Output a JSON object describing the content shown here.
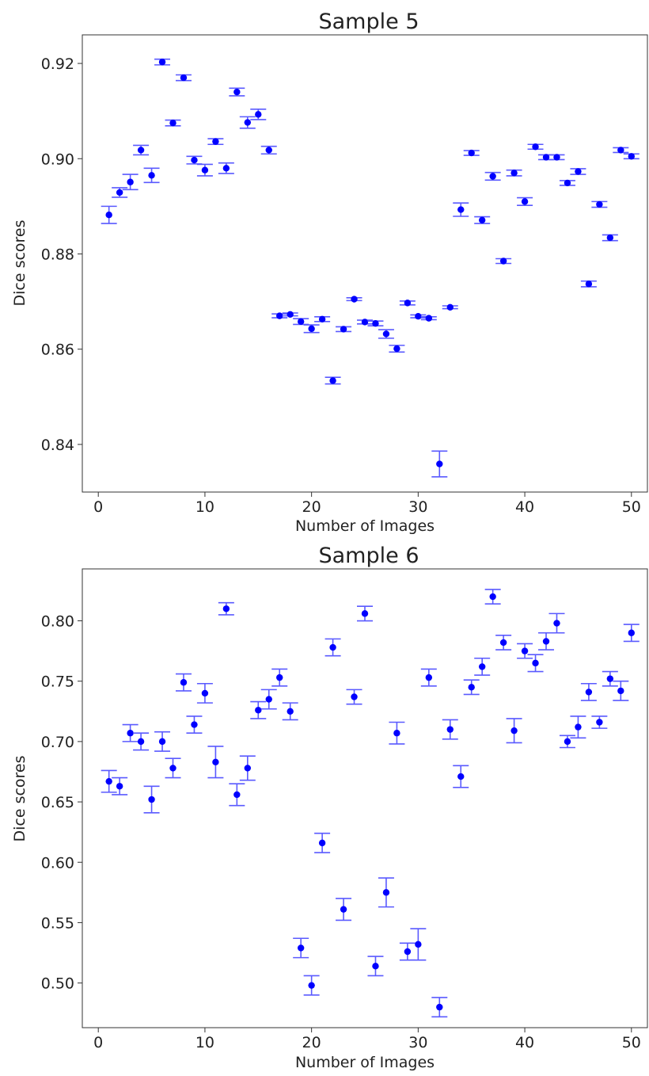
{
  "chart_data": [
    {
      "type": "scatter",
      "title": "Sample 5",
      "xlabel": "Number of Images",
      "ylabel": "Dice scores",
      "xlim": [
        -1.5,
        51.5
      ],
      "ylim": [
        0.83,
        0.926
      ],
      "xticks": [
        0,
        10,
        20,
        30,
        40,
        50
      ],
      "xtick_labels": [
        "0",
        "10",
        "20",
        "30",
        "40",
        "50"
      ],
      "yticks": [
        0.84,
        0.86,
        0.88,
        0.9,
        0.92
      ],
      "ytick_labels": [
        "0.84",
        "0.86",
        "0.88",
        "0.90",
        "0.92"
      ],
      "grid": false,
      "color": "#0000ff",
      "error_color": "#5a5aff",
      "series": [
        {
          "x": [
            1,
            2,
            3,
            4,
            5,
            6,
            7,
            8,
            9,
            10,
            11,
            12,
            13,
            14,
            15,
            16,
            17,
            18,
            19,
            20,
            21,
            22,
            23,
            24,
            25,
            26,
            27,
            28,
            29,
            30,
            31,
            32,
            33,
            34,
            35,
            36,
            37,
            38,
            39,
            40,
            41,
            42,
            43,
            44,
            45,
            46,
            47,
            48,
            49,
            50
          ],
          "y": [
            0.8882,
            0.8929,
            0.8951,
            0.9018,
            0.8965,
            0.9203,
            0.9075,
            0.917,
            0.8997,
            0.8976,
            0.9036,
            0.898,
            0.914,
            0.9076,
            0.9093,
            0.9018,
            0.867,
            0.8673,
            0.8658,
            0.8643,
            0.8663,
            0.8534,
            0.8642,
            0.8705,
            0.8657,
            0.8654,
            0.8632,
            0.8601,
            0.8697,
            0.8669,
            0.8665,
            0.8359,
            0.8688,
            0.8893,
            0.9012,
            0.8871,
            0.8963,
            0.8785,
            0.897,
            0.891,
            0.9025,
            0.9003,
            0.9003,
            0.8949,
            0.8973,
            0.8737,
            0.8904,
            0.8834,
            0.9018,
            0.9005
          ],
          "err": [
            0.0018,
            0.001,
            0.0016,
            0.001,
            0.0015,
            0.0006,
            0.0006,
            0.0006,
            0.0008,
            0.0012,
            0.0006,
            0.0011,
            0.0008,
            0.0012,
            0.0011,
            0.0008,
            0.0004,
            0.0003,
            0.0006,
            0.0008,
            0.0005,
            0.0007,
            0.0005,
            0.0003,
            0.0004,
            0.0005,
            0.0009,
            0.0007,
            0.0004,
            0.0003,
            0.0003,
            0.0027,
            0.0003,
            0.0014,
            0.0005,
            0.0007,
            0.0008,
            0.0005,
            0.0006,
            0.0008,
            0.0005,
            0.0005,
            0.0005,
            0.0005,
            0.0006,
            0.0006,
            0.0006,
            0.0006,
            0.0005,
            0.0005
          ]
        }
      ]
    },
    {
      "type": "scatter",
      "title": "Sample 6",
      "xlabel": "Number of Images",
      "ylabel": "Dice scores",
      "xlim": [
        -1.5,
        51.5
      ],
      "ylim": [
        0.463,
        0.843
      ],
      "xticks": [
        0,
        10,
        20,
        30,
        40,
        50
      ],
      "xtick_labels": [
        "0",
        "10",
        "20",
        "30",
        "40",
        "50"
      ],
      "yticks": [
        0.5,
        0.55,
        0.6,
        0.65,
        0.7,
        0.75,
        0.8
      ],
      "ytick_labels": [
        "0.50",
        "0.55",
        "0.60",
        "0.65",
        "0.70",
        "0.75",
        "0.80"
      ],
      "grid": false,
      "color": "#0000ff",
      "error_color": "#5a5aff",
      "series": [
        {
          "x": [
            1,
            2,
            3,
            4,
            5,
            6,
            7,
            8,
            9,
            10,
            11,
            12,
            13,
            14,
            15,
            16,
            17,
            18,
            19,
            20,
            21,
            22,
            23,
            24,
            25,
            26,
            27,
            28,
            29,
            30,
            31,
            32,
            33,
            34,
            35,
            36,
            37,
            38,
            39,
            40,
            41,
            42,
            43,
            44,
            45,
            46,
            47,
            48,
            49,
            50
          ],
          "y": [
            0.667,
            0.663,
            0.707,
            0.7,
            0.652,
            0.7,
            0.678,
            0.749,
            0.714,
            0.74,
            0.683,
            0.81,
            0.656,
            0.678,
            0.726,
            0.735,
            0.753,
            0.725,
            0.529,
            0.498,
            0.616,
            0.778,
            0.561,
            0.737,
            0.806,
            0.514,
            0.575,
            0.707,
            0.526,
            0.532,
            0.753,
            0.48,
            0.71,
            0.671,
            0.745,
            0.762,
            0.82,
            0.782,
            0.709,
            0.775,
            0.765,
            0.783,
            0.798,
            0.7,
            0.712,
            0.741,
            0.716,
            0.752,
            0.742,
            0.79
          ],
          "err": [
            0.009,
            0.007,
            0.007,
            0.007,
            0.011,
            0.008,
            0.008,
            0.007,
            0.007,
            0.008,
            0.013,
            0.005,
            0.009,
            0.01,
            0.007,
            0.008,
            0.007,
            0.007,
            0.008,
            0.008,
            0.008,
            0.007,
            0.009,
            0.006,
            0.006,
            0.008,
            0.012,
            0.009,
            0.007,
            0.013,
            0.007,
            0.008,
            0.008,
            0.009,
            0.006,
            0.007,
            0.006,
            0.006,
            0.01,
            0.006,
            0.007,
            0.007,
            0.008,
            0.005,
            0.009,
            0.007,
            0.005,
            0.006,
            0.008,
            0.007
          ]
        }
      ]
    }
  ]
}
